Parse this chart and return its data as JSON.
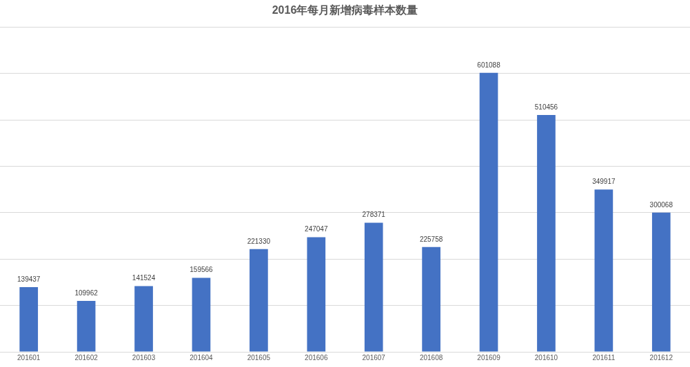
{
  "chart_data": {
    "type": "bar",
    "title": "2016年每月新增病毒样本数量",
    "categories": [
      "201601",
      "201602",
      "201603",
      "201604",
      "201605",
      "201606",
      "201607",
      "201608",
      "201609",
      "201610",
      "201611",
      "201612"
    ],
    "values": [
      139437,
      109962,
      141524,
      159566,
      221330,
      247047,
      278371,
      225758,
      601088,
      510456,
      349917,
      300068
    ],
    "color": "#4472c4",
    "ylim": [
      0,
      700000
    ],
    "tick_labels": "x",
    "grid": "y",
    "data_labels": true,
    "legend": false
  }
}
